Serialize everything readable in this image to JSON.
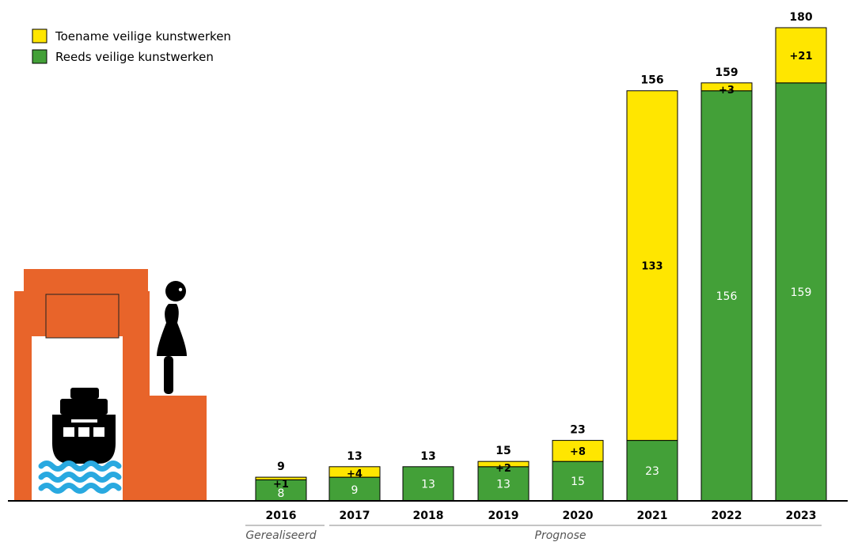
{
  "chart_data": {
    "type": "bar",
    "stacked": true,
    "categories": [
      "2016",
      "2017",
      "2018",
      "2019",
      "2020",
      "2021",
      "2022",
      "2023"
    ],
    "series": [
      {
        "name": "Reeds veilige kunstwerken",
        "values": [
          8,
          9,
          13,
          13,
          15,
          23,
          156,
          159
        ],
        "labels": [
          "8",
          "9",
          "13",
          "13",
          "15",
          "23",
          "156",
          "159"
        ]
      },
      {
        "name": "Toename veilige kunstwerken",
        "values": [
          1,
          4,
          0,
          2,
          8,
          133,
          3,
          21
        ],
        "labels": [
          "+1",
          "+4",
          "",
          "+2",
          "+8",
          "133",
          "+3",
          "+21"
        ]
      }
    ],
    "totals": [
      9,
      13,
      13,
      15,
      23,
      156,
      159,
      180
    ],
    "ylim": [
      0,
      180
    ],
    "grid": false,
    "legend_position": "top-left",
    "period_labels": {
      "realised": "Gerealiseerd",
      "forecast": "Prognose"
    }
  },
  "colors": {
    "reeds": "#43A038",
    "toename": "#FFE600",
    "structure": "#E8642A",
    "water": "#29A9E0",
    "icon": "#000000",
    "axis": "#000000"
  },
  "icons": [
    "bridge-lock-icon",
    "ship-icon",
    "water-waves-icon",
    "person-icon"
  ]
}
